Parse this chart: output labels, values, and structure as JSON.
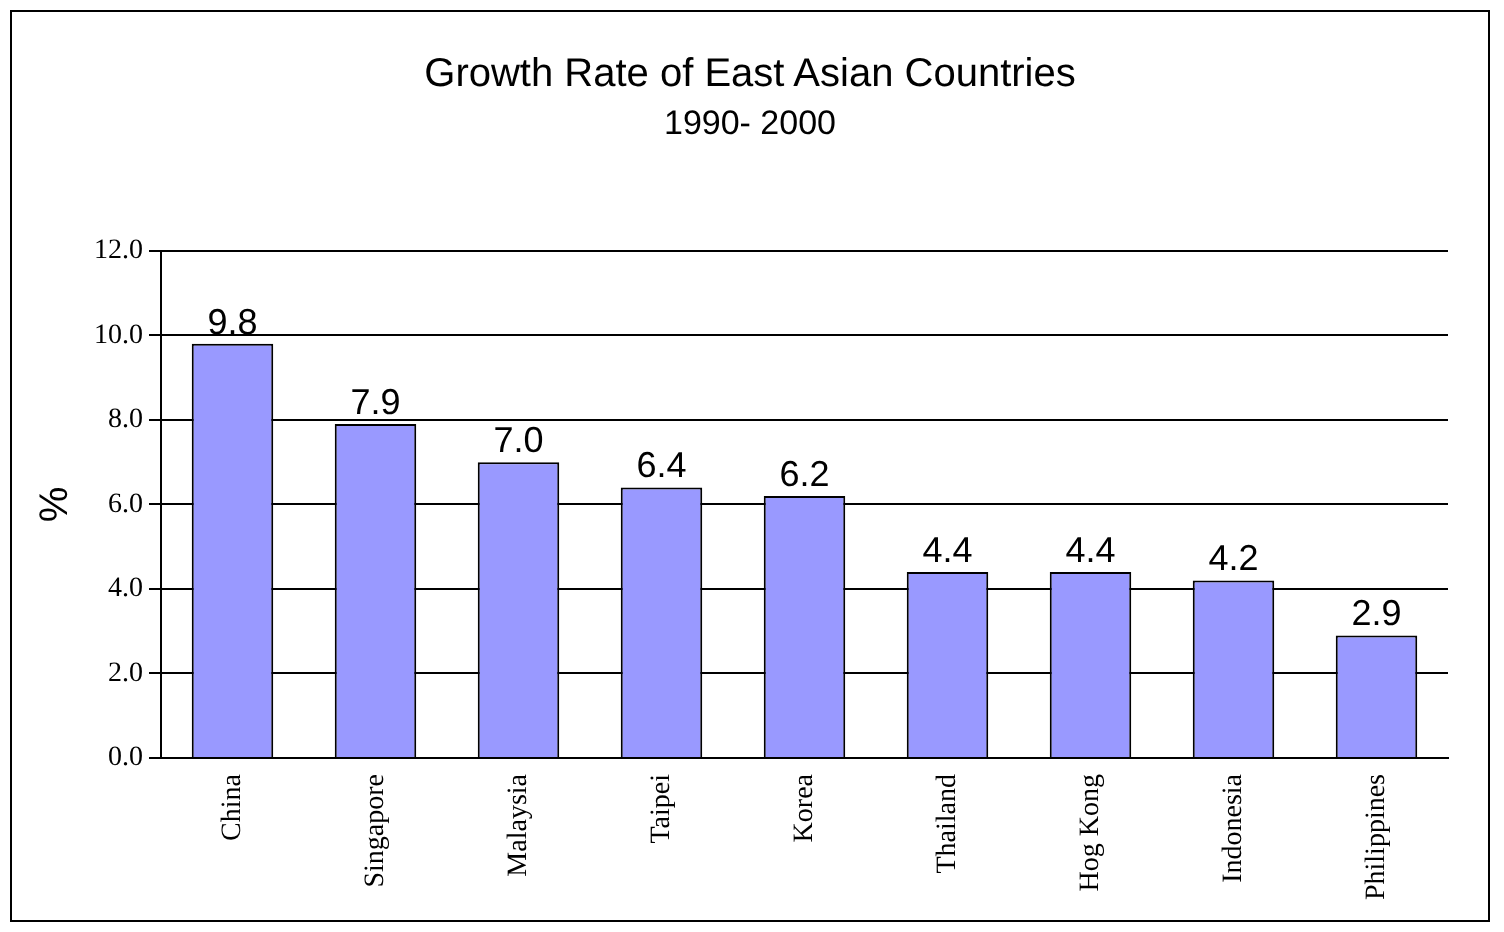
{
  "chart_data": {
    "type": "bar",
    "title": "Growth Rate of East Asian Countries",
    "subtitle": "1990- 2000",
    "ylabel": "%",
    "categories": [
      "China",
      "Singapore",
      "Malaysia",
      "Taipei",
      "Korea",
      "Thailand",
      "Hog Kong",
      "Indonesia",
      "Philippines"
    ],
    "values": [
      9.8,
      7.9,
      7.0,
      6.4,
      6.2,
      4.4,
      4.4,
      4.2,
      2.9
    ],
    "value_labels": [
      "9.8",
      "7.9",
      "7.0",
      "6.4",
      "6.2",
      "4.4",
      "4.4",
      "4.2",
      "2.9"
    ],
    "color": "#9999ff",
    "ylim": [
      0,
      12
    ],
    "yticks": [
      {
        "value": 0,
        "label": "0.0"
      },
      {
        "value": 2,
        "label": "2.0"
      },
      {
        "value": 4,
        "label": "4.0"
      },
      {
        "value": 6,
        "label": "6.0"
      },
      {
        "value": 8,
        "label": "8.0"
      },
      {
        "value": 10,
        "label": "10.0"
      },
      {
        "value": 12,
        "label": "12.0"
      }
    ],
    "grid": "y"
  }
}
